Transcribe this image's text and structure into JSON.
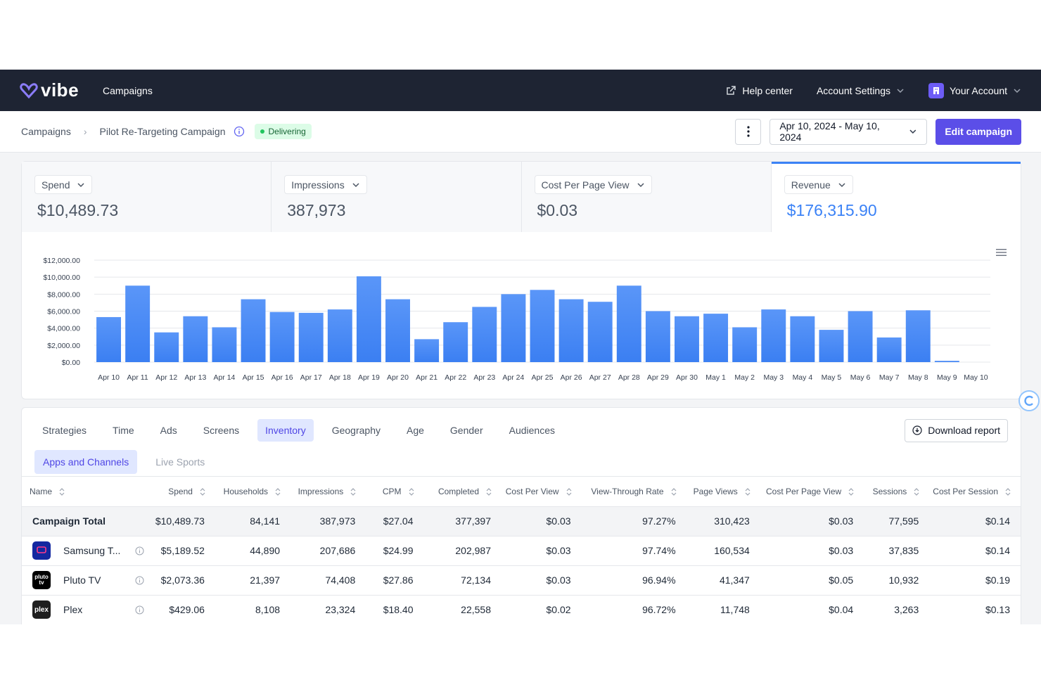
{
  "nav": {
    "logo_text": "vibe",
    "campaigns": "Campaigns",
    "help_center": "Help center",
    "account_settings": "Account Settings",
    "your_account": "Your Account"
  },
  "subheader": {
    "crumb_root": "Campaigns",
    "crumb_current": "Pilot Re-Targeting Campaign",
    "status": "Delivering",
    "date_range": "Apr 10, 2024 - May 10, 2024",
    "edit_label": "Edit campaign"
  },
  "metrics": [
    {
      "label": "Spend",
      "value": "$10,489.73"
    },
    {
      "label": "Impressions",
      "value": "387,973"
    },
    {
      "label": "Cost Per Page View",
      "value": "$0.03"
    },
    {
      "label": "Revenue",
      "value": "$176,315.90"
    }
  ],
  "chart_data": {
    "type": "bar",
    "title": "",
    "xlabel": "",
    "ylabel": "",
    "ylim": [
      0,
      12000
    ],
    "yticks": [
      "$12,000.00",
      "$10,000.00",
      "$8,000.00",
      "$6,000.00",
      "$4,000.00",
      "$2,000.00",
      "$0.00"
    ],
    "categories": [
      "Apr 10",
      "Apr 11",
      "Apr 12",
      "Apr 13",
      "Apr 14",
      "Apr 15",
      "Apr 16",
      "Apr 17",
      "Apr 18",
      "Apr 19",
      "Apr 20",
      "Apr 21",
      "Apr 22",
      "Apr 23",
      "Apr 24",
      "Apr 25",
      "Apr 26",
      "Apr 27",
      "Apr 28",
      "Apr 29",
      "Apr 30",
      "May 1",
      "May 2",
      "May 3",
      "May 4",
      "May 5",
      "May 6",
      "May 7",
      "May 8",
      "May 9",
      "May 10"
    ],
    "values": [
      5300,
      9000,
      3500,
      5400,
      4100,
      7400,
      5900,
      5800,
      6200,
      10100,
      7400,
      2700,
      4700,
      6500,
      8000,
      8500,
      7400,
      7100,
      9000,
      6000,
      5400,
      5700,
      4100,
      6200,
      5400,
      3800,
      6000,
      2900,
      6100,
      150,
      0
    ],
    "grid": true,
    "legend": "none"
  },
  "tabs": [
    "Strategies",
    "Time",
    "Ads",
    "Screens",
    "Inventory",
    "Geography",
    "Age",
    "Gender",
    "Audiences"
  ],
  "download_label": "Download report",
  "subtabs": [
    "Apps and Channels",
    "Live Sports"
  ],
  "table": {
    "columns": [
      "Name",
      "Spend",
      "Households",
      "Impressions",
      "CPM",
      "Completed",
      "Cost Per View",
      "View-Through Rate",
      "Page Views",
      "Cost Per Page View",
      "Sessions",
      "Cost Per Session"
    ],
    "total": [
      "Campaign Total",
      "$10,489.73",
      "84,141",
      "387,973",
      "$27.04",
      "377,397",
      "$0.03",
      "97.27%",
      "310,423",
      "$0.03",
      "77,595",
      "$0.14"
    ],
    "rows": [
      {
        "name": "Samsung T...",
        "logo": "samsung",
        "cells": [
          "$5,189.52",
          "44,890",
          "207,686",
          "$24.99",
          "202,987",
          "$0.03",
          "97.74%",
          "160,534",
          "$0.03",
          "37,835",
          "$0.14"
        ]
      },
      {
        "name": "Pluto TV",
        "logo": "pluto",
        "cells": [
          "$2,073.36",
          "21,397",
          "74,408",
          "$27.86",
          "72,134",
          "$0.03",
          "96.94%",
          "41,347",
          "$0.05",
          "10,932",
          "$0.19"
        ]
      },
      {
        "name": "Plex",
        "logo": "plex",
        "cells": [
          "$429.06",
          "8,108",
          "23,324",
          "$18.40",
          "22,558",
          "$0.02",
          "96.72%",
          "11,748",
          "$0.04",
          "3,263",
          "$0.13"
        ]
      }
    ]
  },
  "colors": {
    "nav_bg": "#1e2433",
    "accent": "#5b4ee8",
    "bar": "#4f8ff7",
    "revenue": "#3b82f6"
  }
}
